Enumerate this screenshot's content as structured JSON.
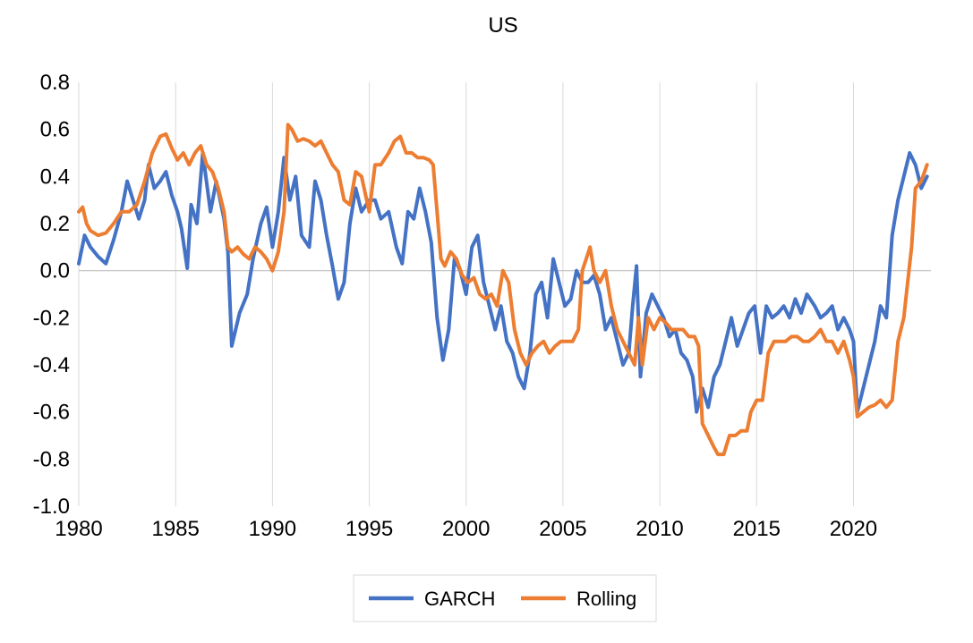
{
  "chart_data": {
    "type": "line",
    "title": "US",
    "xlabel": "",
    "ylabel": "",
    "xlim": [
      1980,
      2024
    ],
    "ylim": [
      -1.0,
      0.8
    ],
    "x_ticks": [
      1980,
      1985,
      1990,
      1995,
      2000,
      2005,
      2010,
      2015,
      2020
    ],
    "x_tick_labels": [
      "1980",
      "1985",
      "1990",
      "1995",
      "2000",
      "2005",
      "2010",
      "2015",
      "2020"
    ],
    "y_ticks": [
      -1.0,
      -0.8,
      -0.6,
      -0.4,
      -0.2,
      0.0,
      0.2,
      0.4,
      0.6,
      0.8
    ],
    "y_tick_labels": [
      "-1.0",
      "-0.8",
      "-0.6",
      "-0.4",
      "-0.2",
      "0.0",
      "0.2",
      "0.4",
      "0.6",
      "0.8"
    ],
    "grid": "vertical",
    "zero_line": true,
    "legend": {
      "placement": "bottom",
      "entries": [
        "GARCH",
        "Rolling"
      ]
    },
    "series": [
      {
        "name": "GARCH",
        "color": "#4472C4",
        "points": [
          [
            1980.0,
            0.03
          ],
          [
            1980.3,
            0.15
          ],
          [
            1980.6,
            0.1
          ],
          [
            1981.0,
            0.06
          ],
          [
            1981.4,
            0.03
          ],
          [
            1981.8,
            0.13
          ],
          [
            1982.2,
            0.25
          ],
          [
            1982.5,
            0.38
          ],
          [
            1982.8,
            0.3
          ],
          [
            1983.1,
            0.22
          ],
          [
            1983.4,
            0.3
          ],
          [
            1983.6,
            0.45
          ],
          [
            1983.9,
            0.35
          ],
          [
            1984.2,
            0.38
          ],
          [
            1984.5,
            0.42
          ],
          [
            1984.8,
            0.32
          ],
          [
            1985.1,
            0.25
          ],
          [
            1985.3,
            0.18
          ],
          [
            1985.6,
            0.01
          ],
          [
            1985.8,
            0.28
          ],
          [
            1986.1,
            0.2
          ],
          [
            1986.4,
            0.5
          ],
          [
            1986.8,
            0.25
          ],
          [
            1987.1,
            0.38
          ],
          [
            1987.5,
            0.22
          ],
          [
            1987.7,
            0.08
          ],
          [
            1987.9,
            -0.32
          ],
          [
            1988.3,
            -0.18
          ],
          [
            1988.7,
            -0.1
          ],
          [
            1989.0,
            0.05
          ],
          [
            1989.4,
            0.2
          ],
          [
            1989.7,
            0.27
          ],
          [
            1990.0,
            0.1
          ],
          [
            1990.3,
            0.25
          ],
          [
            1990.6,
            0.48
          ],
          [
            1990.9,
            0.3
          ],
          [
            1991.2,
            0.4
          ],
          [
            1991.5,
            0.15
          ],
          [
            1991.9,
            0.1
          ],
          [
            1992.2,
            0.38
          ],
          [
            1992.5,
            0.3
          ],
          [
            1992.8,
            0.15
          ],
          [
            1993.1,
            0.02
          ],
          [
            1993.4,
            -0.12
          ],
          [
            1993.7,
            -0.05
          ],
          [
            1994.0,
            0.2
          ],
          [
            1994.3,
            0.35
          ],
          [
            1994.6,
            0.25
          ],
          [
            1995.0,
            0.3
          ],
          [
            1995.3,
            0.3
          ],
          [
            1995.6,
            0.22
          ],
          [
            1996.0,
            0.25
          ],
          [
            1996.4,
            0.1
          ],
          [
            1996.7,
            0.03
          ],
          [
            1997.0,
            0.25
          ],
          [
            1997.3,
            0.22
          ],
          [
            1997.6,
            0.35
          ],
          [
            1997.9,
            0.25
          ],
          [
            1998.2,
            0.12
          ],
          [
            1998.5,
            -0.2
          ],
          [
            1998.8,
            -0.38
          ],
          [
            1999.1,
            -0.25
          ],
          [
            1999.4,
            0.05
          ],
          [
            1999.7,
            0.0
          ],
          [
            2000.0,
            -0.1
          ],
          [
            2000.3,
            0.1
          ],
          [
            2000.6,
            0.15
          ],
          [
            2000.9,
            -0.05
          ],
          [
            2001.2,
            -0.15
          ],
          [
            2001.5,
            -0.25
          ],
          [
            2001.8,
            -0.15
          ],
          [
            2002.1,
            -0.3
          ],
          [
            2002.4,
            -0.35
          ],
          [
            2002.7,
            -0.45
          ],
          [
            2003.0,
            -0.5
          ],
          [
            2003.3,
            -0.35
          ],
          [
            2003.6,
            -0.1
          ],
          [
            2003.9,
            -0.05
          ],
          [
            2004.2,
            -0.2
          ],
          [
            2004.5,
            0.05
          ],
          [
            2004.8,
            -0.05
          ],
          [
            2005.1,
            -0.15
          ],
          [
            2005.4,
            -0.12
          ],
          [
            2005.7,
            0.0
          ],
          [
            2006.0,
            -0.05
          ],
          [
            2006.3,
            -0.05
          ],
          [
            2006.6,
            -0.02
          ],
          [
            2006.9,
            -0.1
          ],
          [
            2007.2,
            -0.25
          ],
          [
            2007.5,
            -0.2
          ],
          [
            2007.8,
            -0.3
          ],
          [
            2008.1,
            -0.4
          ],
          [
            2008.4,
            -0.35
          ],
          [
            2008.6,
            -0.15
          ],
          [
            2008.8,
            0.02
          ],
          [
            2009.0,
            -0.45
          ],
          [
            2009.3,
            -0.18
          ],
          [
            2009.6,
            -0.1
          ],
          [
            2009.9,
            -0.15
          ],
          [
            2010.2,
            -0.2
          ],
          [
            2010.5,
            -0.28
          ],
          [
            2010.8,
            -0.25
          ],
          [
            2011.1,
            -0.35
          ],
          [
            2011.4,
            -0.38
          ],
          [
            2011.7,
            -0.45
          ],
          [
            2011.9,
            -0.6
          ],
          [
            2012.2,
            -0.5
          ],
          [
            2012.5,
            -0.58
          ],
          [
            2012.8,
            -0.45
          ],
          [
            2013.1,
            -0.4
          ],
          [
            2013.4,
            -0.3
          ],
          [
            2013.7,
            -0.2
          ],
          [
            2014.0,
            -0.32
          ],
          [
            2014.3,
            -0.25
          ],
          [
            2014.6,
            -0.18
          ],
          [
            2014.9,
            -0.15
          ],
          [
            2015.2,
            -0.35
          ],
          [
            2015.5,
            -0.15
          ],
          [
            2015.8,
            -0.2
          ],
          [
            2016.1,
            -0.18
          ],
          [
            2016.4,
            -0.15
          ],
          [
            2016.7,
            -0.2
          ],
          [
            2017.0,
            -0.12
          ],
          [
            2017.3,
            -0.18
          ],
          [
            2017.6,
            -0.1
          ],
          [
            2018.0,
            -0.15
          ],
          [
            2018.3,
            -0.2
          ],
          [
            2018.6,
            -0.18
          ],
          [
            2018.9,
            -0.15
          ],
          [
            2019.2,
            -0.25
          ],
          [
            2019.5,
            -0.2
          ],
          [
            2019.8,
            -0.25
          ],
          [
            2020.0,
            -0.3
          ],
          [
            2020.2,
            -0.6
          ],
          [
            2020.5,
            -0.5
          ],
          [
            2020.8,
            -0.4
          ],
          [
            2021.1,
            -0.3
          ],
          [
            2021.4,
            -0.15
          ],
          [
            2021.7,
            -0.2
          ],
          [
            2022.0,
            0.15
          ],
          [
            2022.3,
            0.3
          ],
          [
            2022.6,
            0.4
          ],
          [
            2022.9,
            0.5
          ],
          [
            2023.2,
            0.45
          ],
          [
            2023.5,
            0.35
          ],
          [
            2023.8,
            0.4
          ]
        ]
      },
      {
        "name": "Rolling",
        "color": "#ED7D31",
        "points": [
          [
            1980.0,
            0.25
          ],
          [
            1980.2,
            0.27
          ],
          [
            1980.4,
            0.2
          ],
          [
            1980.6,
            0.17
          ],
          [
            1981.0,
            0.15
          ],
          [
            1981.4,
            0.16
          ],
          [
            1981.8,
            0.2
          ],
          [
            1982.2,
            0.25
          ],
          [
            1982.6,
            0.25
          ],
          [
            1983.0,
            0.28
          ],
          [
            1983.4,
            0.38
          ],
          [
            1983.8,
            0.5
          ],
          [
            1984.2,
            0.57
          ],
          [
            1984.5,
            0.58
          ],
          [
            1984.8,
            0.52
          ],
          [
            1985.1,
            0.47
          ],
          [
            1985.4,
            0.5
          ],
          [
            1985.7,
            0.45
          ],
          [
            1986.0,
            0.5
          ],
          [
            1986.3,
            0.53
          ],
          [
            1986.6,
            0.45
          ],
          [
            1986.9,
            0.42
          ],
          [
            1987.2,
            0.35
          ],
          [
            1987.5,
            0.25
          ],
          [
            1987.7,
            0.1
          ],
          [
            1987.9,
            0.08
          ],
          [
            1988.2,
            0.1
          ],
          [
            1988.5,
            0.07
          ],
          [
            1988.8,
            0.05
          ],
          [
            1989.1,
            0.1
          ],
          [
            1989.4,
            0.08
          ],
          [
            1989.7,
            0.05
          ],
          [
            1990.0,
            0.0
          ],
          [
            1990.3,
            0.08
          ],
          [
            1990.6,
            0.25
          ],
          [
            1990.8,
            0.62
          ],
          [
            1991.0,
            0.6
          ],
          [
            1991.3,
            0.55
          ],
          [
            1991.6,
            0.56
          ],
          [
            1991.9,
            0.55
          ],
          [
            1992.2,
            0.53
          ],
          [
            1992.5,
            0.55
          ],
          [
            1992.8,
            0.5
          ],
          [
            1993.1,
            0.45
          ],
          [
            1993.4,
            0.42
          ],
          [
            1993.7,
            0.3
          ],
          [
            1994.0,
            0.28
          ],
          [
            1994.3,
            0.42
          ],
          [
            1994.6,
            0.4
          ],
          [
            1995.0,
            0.25
          ],
          [
            1995.3,
            0.45
          ],
          [
            1995.6,
            0.45
          ],
          [
            1996.0,
            0.5
          ],
          [
            1996.3,
            0.55
          ],
          [
            1996.6,
            0.57
          ],
          [
            1996.9,
            0.5
          ],
          [
            1997.2,
            0.5
          ],
          [
            1997.5,
            0.48
          ],
          [
            1997.8,
            0.48
          ],
          [
            1998.1,
            0.47
          ],
          [
            1998.3,
            0.45
          ],
          [
            1998.5,
            0.25
          ],
          [
            1998.7,
            0.05
          ],
          [
            1998.9,
            0.02
          ],
          [
            1999.2,
            0.08
          ],
          [
            1999.5,
            0.05
          ],
          [
            1999.8,
            -0.02
          ],
          [
            2000.1,
            -0.05
          ],
          [
            2000.4,
            -0.03
          ],
          [
            2000.7,
            -0.1
          ],
          [
            2001.0,
            -0.12
          ],
          [
            2001.3,
            -0.1
          ],
          [
            2001.6,
            -0.15
          ],
          [
            2001.9,
            0.0
          ],
          [
            2002.2,
            -0.05
          ],
          [
            2002.5,
            -0.25
          ],
          [
            2002.8,
            -0.35
          ],
          [
            2003.1,
            -0.4
          ],
          [
            2003.4,
            -0.35
          ],
          [
            2003.7,
            -0.32
          ],
          [
            2004.0,
            -0.3
          ],
          [
            2004.3,
            -0.35
          ],
          [
            2004.6,
            -0.32
          ],
          [
            2004.9,
            -0.3
          ],
          [
            2005.2,
            -0.3
          ],
          [
            2005.5,
            -0.3
          ],
          [
            2005.8,
            -0.25
          ],
          [
            2006.0,
            0.0
          ],
          [
            2006.2,
            0.05
          ],
          [
            2006.4,
            0.1
          ],
          [
            2006.6,
            0.0
          ],
          [
            2006.9,
            -0.05
          ],
          [
            2007.2,
            0.0
          ],
          [
            2007.5,
            -0.15
          ],
          [
            2007.8,
            -0.25
          ],
          [
            2008.1,
            -0.3
          ],
          [
            2008.4,
            -0.35
          ],
          [
            2008.7,
            -0.4
          ],
          [
            2008.9,
            -0.2
          ],
          [
            2009.1,
            -0.4
          ],
          [
            2009.4,
            -0.2
          ],
          [
            2009.7,
            -0.25
          ],
          [
            2010.0,
            -0.2
          ],
          [
            2010.3,
            -0.22
          ],
          [
            2010.6,
            -0.25
          ],
          [
            2010.9,
            -0.25
          ],
          [
            2011.2,
            -0.25
          ],
          [
            2011.5,
            -0.28
          ],
          [
            2011.8,
            -0.28
          ],
          [
            2012.0,
            -0.32
          ],
          [
            2012.2,
            -0.65
          ],
          [
            2012.5,
            -0.7
          ],
          [
            2012.8,
            -0.75
          ],
          [
            2013.0,
            -0.78
          ],
          [
            2013.3,
            -0.78
          ],
          [
            2013.6,
            -0.7
          ],
          [
            2013.9,
            -0.7
          ],
          [
            2014.2,
            -0.68
          ],
          [
            2014.5,
            -0.68
          ],
          [
            2014.7,
            -0.6
          ],
          [
            2015.0,
            -0.55
          ],
          [
            2015.3,
            -0.55
          ],
          [
            2015.6,
            -0.35
          ],
          [
            2015.9,
            -0.3
          ],
          [
            2016.2,
            -0.3
          ],
          [
            2016.5,
            -0.3
          ],
          [
            2016.8,
            -0.28
          ],
          [
            2017.1,
            -0.28
          ],
          [
            2017.4,
            -0.3
          ],
          [
            2017.7,
            -0.3
          ],
          [
            2018.0,
            -0.28
          ],
          [
            2018.3,
            -0.25
          ],
          [
            2018.6,
            -0.3
          ],
          [
            2018.9,
            -0.3
          ],
          [
            2019.2,
            -0.35
          ],
          [
            2019.5,
            -0.3
          ],
          [
            2019.8,
            -0.38
          ],
          [
            2020.0,
            -0.45
          ],
          [
            2020.2,
            -0.62
          ],
          [
            2020.5,
            -0.6
          ],
          [
            2020.8,
            -0.58
          ],
          [
            2021.1,
            -0.57
          ],
          [
            2021.4,
            -0.55
          ],
          [
            2021.7,
            -0.58
          ],
          [
            2022.0,
            -0.55
          ],
          [
            2022.3,
            -0.3
          ],
          [
            2022.6,
            -0.2
          ],
          [
            2022.8,
            -0.05
          ],
          [
            2023.0,
            0.1
          ],
          [
            2023.2,
            0.35
          ],
          [
            2023.5,
            0.38
          ],
          [
            2023.8,
            0.45
          ]
        ]
      }
    ]
  }
}
